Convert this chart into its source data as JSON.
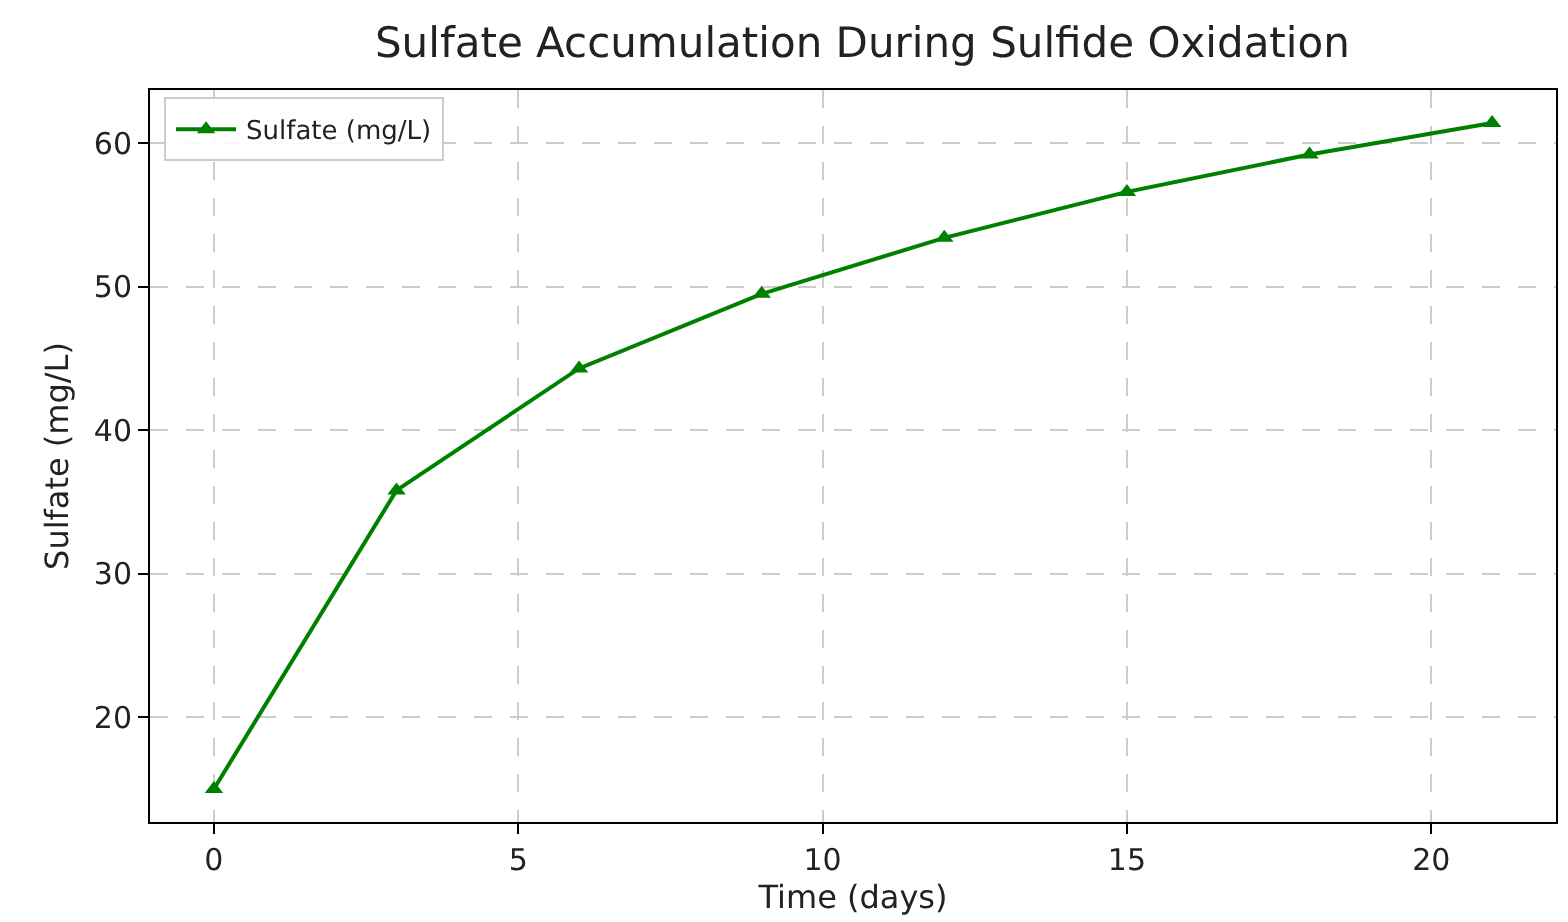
{
  "chart_data": {
    "type": "line",
    "title": "Sulfate Accumulation During Sulfide Oxidation",
    "xlabel": "Time (days)",
    "ylabel": "Sulfate (mg/L)",
    "x": [
      0,
      3,
      6,
      9,
      12,
      15,
      18,
      21
    ],
    "series": [
      {
        "name": "Sulfate (mg/L)",
        "color": "#008000",
        "values": [
          15,
          35.8,
          44.3,
          49.5,
          53.4,
          56.6,
          59.2,
          61.4
        ]
      }
    ],
    "xlim": [
      -1.05,
      22.05
    ],
    "ylim": [
      12.7,
      63.7
    ],
    "xticks": [
      0,
      5,
      10,
      15,
      20
    ],
    "yticks": [
      20,
      30,
      40,
      50,
      60
    ],
    "grid": true,
    "legend": "top left",
    "marker": "triangle",
    "line_style": "solid"
  }
}
